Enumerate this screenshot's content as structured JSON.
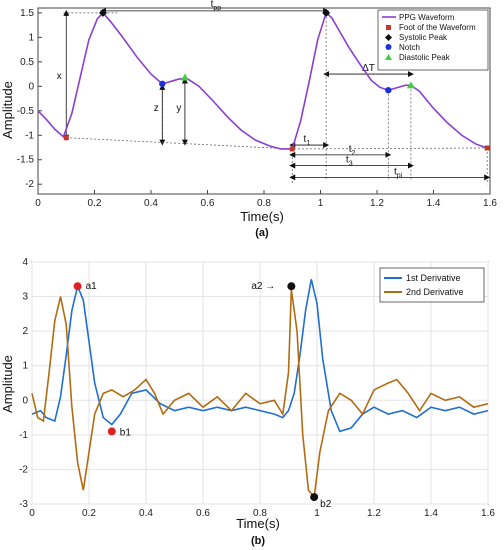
{
  "chart_data": [
    {
      "type": "line",
      "panel_label": "(a)",
      "xlabel": "Time(s)",
      "ylabel": "Amplitude",
      "xlim": [
        0,
        1.6
      ],
      "ylim": [
        -2.2,
        1.6
      ],
      "xticks": [
        "0",
        "0.2",
        "0.4",
        "0.6",
        "0.8",
        "1",
        "1.2",
        "1.4",
        "1.6"
      ],
      "yticks": [
        "-2",
        "-1.5",
        "-1",
        "-0.5",
        "0",
        "0.5",
        "1",
        "1.5"
      ],
      "grid": false,
      "legend_position": "top-right",
      "colors": {
        "waveform": "#8a3fd0",
        "foot": "#c0392b",
        "systolic": "#111111",
        "notch": "#1f2fd6",
        "diastolic": "#44cc44"
      },
      "series": [
        {
          "name": "PPG Waveform",
          "x": [
            0.0,
            0.03,
            0.06,
            0.09,
            0.12,
            0.15,
            0.18,
            0.21,
            0.23,
            0.26,
            0.3,
            0.35,
            0.4,
            0.44,
            0.47,
            0.5,
            0.53,
            0.57,
            0.62,
            0.67,
            0.72,
            0.77,
            0.82,
            0.86,
            0.9,
            0.93,
            0.96,
            0.99,
            1.02,
            1.04,
            1.07,
            1.1,
            1.14,
            1.18,
            1.21,
            1.24,
            1.27,
            1.3,
            1.32,
            1.35,
            1.4,
            1.45,
            1.5,
            1.55,
            1.59
          ],
          "y": [
            -0.5,
            -0.68,
            -0.88,
            -1.03,
            -0.55,
            0.2,
            0.95,
            1.38,
            1.5,
            1.3,
            1.0,
            0.6,
            0.25,
            0.05,
            0.1,
            0.15,
            0.15,
            0.0,
            -0.3,
            -0.62,
            -0.9,
            -1.1,
            -1.22,
            -1.28,
            -1.28,
            -0.7,
            0.1,
            0.95,
            1.5,
            1.4,
            1.1,
            0.8,
            0.45,
            0.12,
            -0.02,
            -0.08,
            -0.03,
            0.02,
            0.02,
            -0.1,
            -0.45,
            -0.75,
            -1.0,
            -1.18,
            -1.26
          ]
        }
      ],
      "markers": {
        "foot": [
          {
            "x": 0.1,
            "y": -1.05
          },
          {
            "x": 0.9,
            "y": -1.28
          },
          {
            "x": 1.59,
            "y": -1.26
          }
        ],
        "systolic": [
          {
            "x": 0.23,
            "y": 1.5
          },
          {
            "x": 1.02,
            "y": 1.5
          }
        ],
        "notch": [
          {
            "x": 0.44,
            "y": 0.05
          },
          {
            "x": 1.24,
            "y": -0.08
          }
        ],
        "diastolic": [
          {
            "x": 0.52,
            "y": 0.18
          },
          {
            "x": 1.32,
            "y": 0.02
          }
        ]
      },
      "legend": [
        "PPG Waveform",
        "Foot of the Waveform",
        "Systolic Peak",
        "Notch",
        "Diastolic Peak"
      ],
      "annotations": {
        "tpp": {
          "base": "t",
          "sub": "pp"
        },
        "x": "x",
        "y": "y",
        "z": "z",
        "dT": "ΔT",
        "t1": {
          "base": "t",
          "sub": "1"
        },
        "t2": {
          "base": "t",
          "sub": "2"
        },
        "t3": {
          "base": "t",
          "sub": "3"
        },
        "tpi": {
          "base": "t",
          "sub": "pi"
        }
      }
    },
    {
      "type": "line",
      "panel_label": "(b)",
      "xlabel": "Time(s)",
      "ylabel": "Amplitude",
      "xlim": [
        0,
        1.6
      ],
      "ylim": [
        -3,
        4
      ],
      "xticks": [
        "0",
        "0.2",
        "0.4",
        "0.6",
        "0.8",
        "1",
        "1.2",
        "1.4",
        "1.6"
      ],
      "yticks": [
        "-3",
        "-2",
        "-1",
        "0",
        "1",
        "2",
        "3",
        "4"
      ],
      "grid": true,
      "legend_position": "top-right",
      "colors": {
        "first": "#1f6fd0",
        "second": "#b36b12",
        "point": "#111111",
        "point_red": "#d22"
      },
      "series": [
        {
          "name": "1st Derivative",
          "x": [
            0.0,
            0.03,
            0.05,
            0.08,
            0.1,
            0.12,
            0.14,
            0.16,
            0.18,
            0.2,
            0.22,
            0.25,
            0.28,
            0.31,
            0.35,
            0.4,
            0.45,
            0.5,
            0.55,
            0.6,
            0.65,
            0.7,
            0.75,
            0.8,
            0.85,
            0.88,
            0.9,
            0.92,
            0.94,
            0.96,
            0.98,
            1.0,
            1.02,
            1.05,
            1.08,
            1.12,
            1.16,
            1.2,
            1.25,
            1.3,
            1.35,
            1.4,
            1.45,
            1.5,
            1.55,
            1.6
          ],
          "y": [
            -0.4,
            -0.3,
            -0.5,
            -0.6,
            0.1,
            1.3,
            2.6,
            3.3,
            2.9,
            1.7,
            0.5,
            -0.5,
            -0.7,
            -0.4,
            0.2,
            0.3,
            -0.1,
            -0.3,
            -0.2,
            -0.3,
            -0.2,
            -0.3,
            -0.2,
            -0.3,
            -0.4,
            -0.5,
            -0.3,
            0.2,
            1.3,
            2.6,
            3.5,
            2.8,
            1.2,
            -0.3,
            -0.9,
            -0.8,
            -0.4,
            -0.2,
            -0.4,
            -0.3,
            -0.5,
            -0.2,
            -0.3,
            -0.2,
            -0.4,
            -0.3
          ]
        },
        {
          "name": "2nd Derivative",
          "x": [
            0.0,
            0.02,
            0.04,
            0.06,
            0.08,
            0.1,
            0.12,
            0.14,
            0.16,
            0.18,
            0.2,
            0.22,
            0.25,
            0.28,
            0.32,
            0.36,
            0.4,
            0.43,
            0.46,
            0.5,
            0.55,
            0.6,
            0.65,
            0.7,
            0.75,
            0.8,
            0.85,
            0.88,
            0.9,
            0.91,
            0.93,
            0.95,
            0.97,
            0.99,
            1.01,
            1.04,
            1.08,
            1.12,
            1.16,
            1.2,
            1.25,
            1.28,
            1.32,
            1.36,
            1.4,
            1.45,
            1.5,
            1.55,
            1.6
          ],
          "y": [
            0.2,
            -0.5,
            -0.6,
            0.8,
            2.3,
            3.0,
            2.2,
            -0.2,
            -1.8,
            -2.6,
            -1.5,
            -0.4,
            0.2,
            0.3,
            0.1,
            0.3,
            0.6,
            0.2,
            -0.4,
            0.0,
            0.2,
            -0.2,
            0.1,
            -0.3,
            0.2,
            -0.1,
            0.0,
            -0.4,
            0.8,
            3.2,
            2.0,
            -1.0,
            -2.6,
            -2.8,
            -1.5,
            -0.3,
            0.2,
            0.0,
            -0.4,
            0.3,
            0.5,
            0.6,
            0.2,
            -0.3,
            0.2,
            0.0,
            0.1,
            -0.2,
            -0.1
          ]
        }
      ],
      "points": [
        {
          "label": "a1",
          "x": 0.16,
          "y": 3.3,
          "color": "red"
        },
        {
          "label": "b1",
          "x": 0.28,
          "y": -0.9,
          "color": "red"
        },
        {
          "label": "a2 →",
          "x": 0.91,
          "y": 3.3,
          "color": "black"
        },
        {
          "label": "b2",
          "x": 0.99,
          "y": -2.8,
          "color": "black"
        }
      ],
      "legend": [
        "1st Derivative",
        "2nd Derivative"
      ]
    }
  ]
}
